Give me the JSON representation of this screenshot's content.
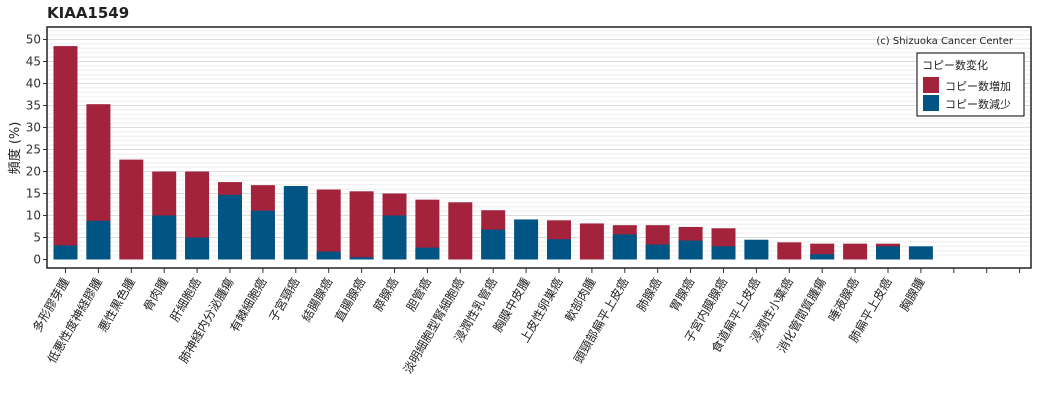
{
  "chart_data": {
    "type": "bar",
    "title": "KIAA1549",
    "ylabel": "頻度 (%)",
    "xlabel": "",
    "ylim": [
      0,
      52
    ],
    "yticks": [
      0,
      5,
      10,
      15,
      20,
      25,
      30,
      35,
      40,
      45,
      50
    ],
    "grid": true,
    "credit": "(c) Shizuoka Cancer Center",
    "legend": {
      "title": "コピー数変化",
      "position": "top-right"
    },
    "categories": [
      "多形膠芽腫",
      "低悪性度神経膠腫",
      "悪性黒色腫",
      "骨肉腫",
      "肝細胞癌",
      "肺神経内分泌腫瘍",
      "有棘細胞癌",
      "子宮頸癌",
      "結腸腺癌",
      "直腸腺癌",
      "膵腺癌",
      "胆管癌",
      "淡明細胞型腎細胞癌",
      "浸潤性乳管癌",
      "胸膜中皮腫",
      "上皮性卵巣癌",
      "軟部肉腫",
      "頭頸部扁平上皮癌",
      "肺腺癌",
      "胃腺癌",
      "子宮内膜腺癌",
      "食道扁平上皮癌",
      "浸潤性小葉癌",
      "消化管間質腫瘍",
      "唾液腺癌",
      "肺扁平上皮癌",
      "胸腺腫",
      "",
      "",
      ""
    ],
    "series": [
      {
        "name": "コピー数増加",
        "color": "#a3233d",
        "values": [
          48.5,
          35.3,
          22.7,
          20.0,
          20.0,
          17.6,
          16.9,
          0,
          15.9,
          15.5,
          15.0,
          13.6,
          13.0,
          11.2,
          0,
          8.9,
          8.2,
          7.8,
          7.8,
          7.4,
          7.1,
          0,
          3.9,
          3.6,
          3.6,
          3.6,
          0,
          0,
          0,
          0
        ]
      },
      {
        "name": "コピー数減少",
        "color": "#005584",
        "values": [
          3.2,
          8.8,
          0,
          10.0,
          5.0,
          14.7,
          11.1,
          16.7,
          1.8,
          0.5,
          10.0,
          2.7,
          0,
          6.8,
          9.1,
          4.6,
          0,
          5.7,
          3.4,
          4.3,
          3.0,
          4.5,
          0,
          1.2,
          0,
          3.0,
          3.0,
          0,
          0,
          0
        ]
      }
    ]
  }
}
